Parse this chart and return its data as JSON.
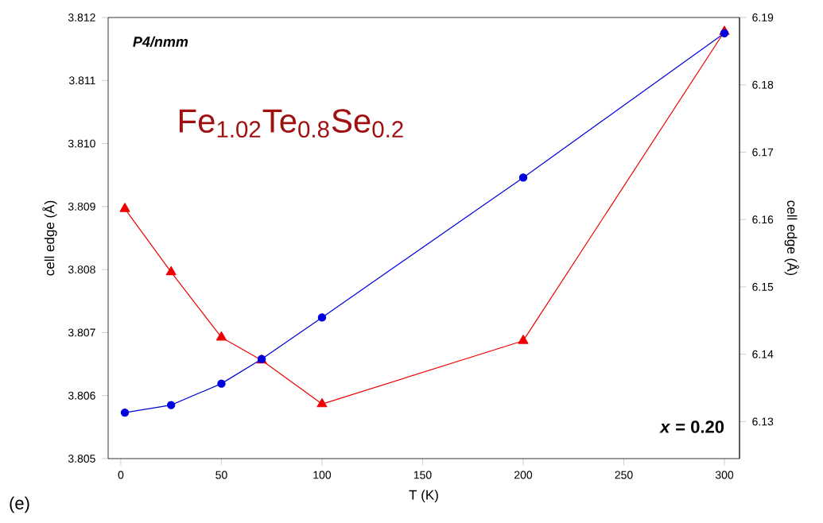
{
  "chart_data": {
    "type": "line",
    "title": "Fe$_{1.02}$Te$_{0.8}$Se$_{0.2}$",
    "xlabel": "T (K)",
    "ylabel": "cell edge (Å)",
    "y2label": "cell edge (Å)",
    "annotations": [
      "P4/nmm",
      "*x* = 0.20",
      "(e)"
    ],
    "series": [
      {
        "color": "#0000dd",
        "marker": "circle",
        "x": [
          2,
          25,
          50,
          70,
          100,
          200,
          300
        ],
        "values": [
          3.80573,
          3.80585,
          3.80619,
          3.80658,
          3.80724,
          3.80946,
          3.81175
        ]
      },
      {
        "color": "#ee0000",
        "marker": "triangle",
        "axis": "y2",
        "x": [
          2,
          25,
          50,
          70,
          100,
          200,
          300
        ],
        "values": [
          6.1616,
          6.1522,
          6.1425,
          6.1391,
          6.1326,
          6.142,
          6.1879
        ]
      }
    ],
    "xlim": [
      -6.3,
      307.5
    ],
    "xticks": [
      0,
      50,
      100,
      150,
      200,
      250,
      300
    ],
    "ylim": [
      3.805,
      3.812
    ],
    "yticks": [
      3.805,
      3.806,
      3.807,
      3.808,
      3.809,
      {
        "value": 3.81,
        "label": "3.810"
      },
      3.811,
      3.812
    ],
    "y2lim": [
      6.1245,
      6.19
    ],
    "y2ticks": [
      6.13,
      6.14,
      6.15,
      6.16,
      6.17,
      6.18,
      6.19
    ]
  }
}
